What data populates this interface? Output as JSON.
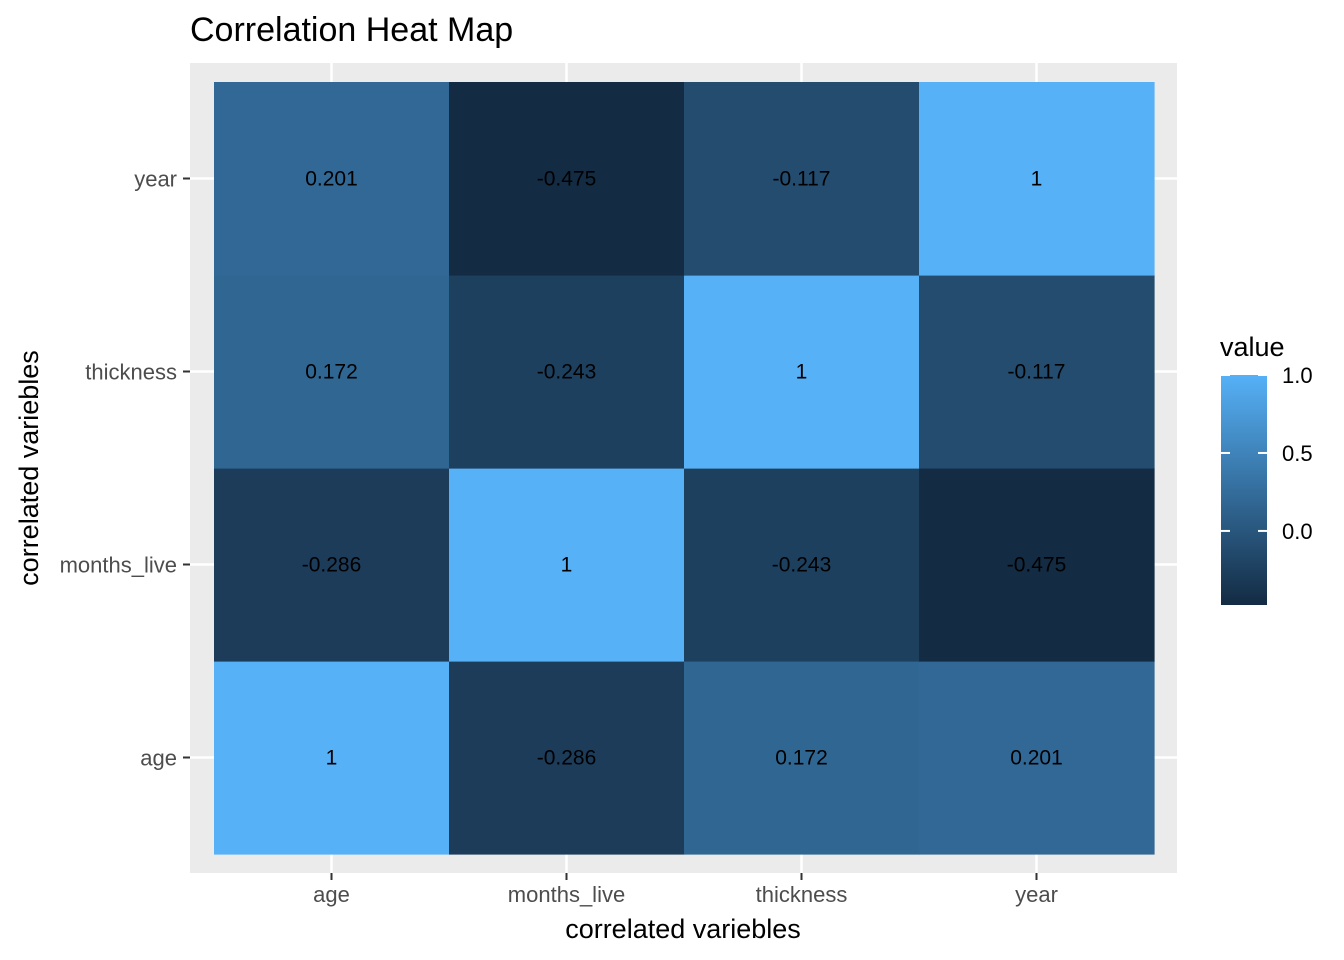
{
  "chart_data": {
    "type": "heatmap",
    "title": "Correlation Heat Map",
    "xlabel": "correlated variebles",
    "ylabel": "correlated variebles",
    "x_categories": [
      "age",
      "months_live",
      "thickness",
      "year"
    ],
    "y_categories": [
      "age",
      "months_live",
      "thickness",
      "year"
    ],
    "values": [
      [
        1,
        -0.286,
        0.172,
        0.201
      ],
      [
        -0.286,
        1,
        -0.243,
        -0.475
      ],
      [
        0.172,
        -0.243,
        1,
        -0.117
      ],
      [
        0.201,
        -0.475,
        -0.117,
        1
      ]
    ],
    "cell_labels": [
      [
        "1",
        "-0.286",
        "0.172",
        "0.201"
      ],
      [
        "-0.286",
        "1",
        "-0.243",
        "-0.475"
      ],
      [
        "0.172",
        "-0.243",
        "1",
        "-0.117"
      ],
      [
        "0.201",
        "-0.475",
        "-0.117",
        "1"
      ]
    ],
    "legend": {
      "title": "value",
      "ticks": [
        1.0,
        0.5,
        0.0
      ],
      "tick_labels": [
        "1.0",
        "0.5",
        "0.0"
      ],
      "range": [
        -0.475,
        1
      ],
      "low_color": "#132B43",
      "high_color": "#56B1F7",
      "placement": "right"
    },
    "grid": true,
    "panel_background": "#EBEBEB",
    "grid_color": "#FFFFFF"
  }
}
